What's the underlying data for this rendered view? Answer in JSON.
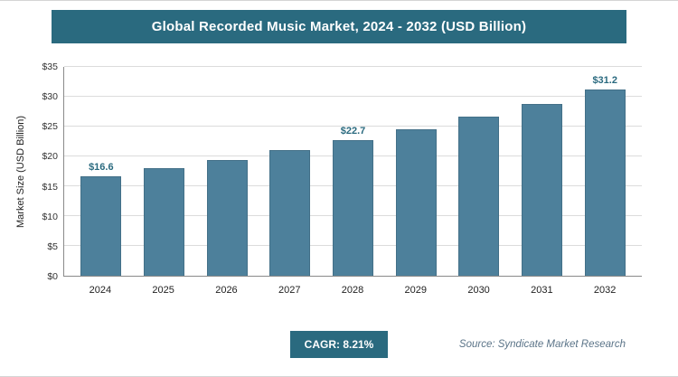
{
  "header": {
    "title": "Global Recorded Music Market, 2024 - 2032 (USD Billion)"
  },
  "chart_data": {
    "type": "bar",
    "title": "Global Recorded Music Market, 2024 - 2032 (USD Billion)",
    "categories": [
      "2024",
      "2025",
      "2026",
      "2027",
      "2028",
      "2029",
      "2030",
      "2031",
      "2032"
    ],
    "values": [
      16.6,
      18.0,
      19.4,
      21.0,
      22.7,
      24.6,
      26.7,
      28.8,
      31.2
    ],
    "value_labels": [
      "$16.6",
      null,
      null,
      null,
      "$22.7",
      null,
      null,
      null,
      "$31.2"
    ],
    "xlabel": "",
    "ylabel": "Market Size (USD Billion)",
    "ylim": [
      0,
      35
    ],
    "y_ticks": [
      "$0",
      "$5",
      "$10",
      "$15",
      "$20",
      "$25",
      "$30",
      "$35"
    ],
    "grid": "horizontal",
    "legend": "none",
    "bar_color": "#4d809b"
  },
  "footer": {
    "cagr_label": "CAGR: 8.21%",
    "source": "Source: Syndicate Market Research"
  },
  "colors": {
    "accent": "#2a6a7f",
    "bar": "#4d809b",
    "value_label": "#2a6a7f"
  }
}
